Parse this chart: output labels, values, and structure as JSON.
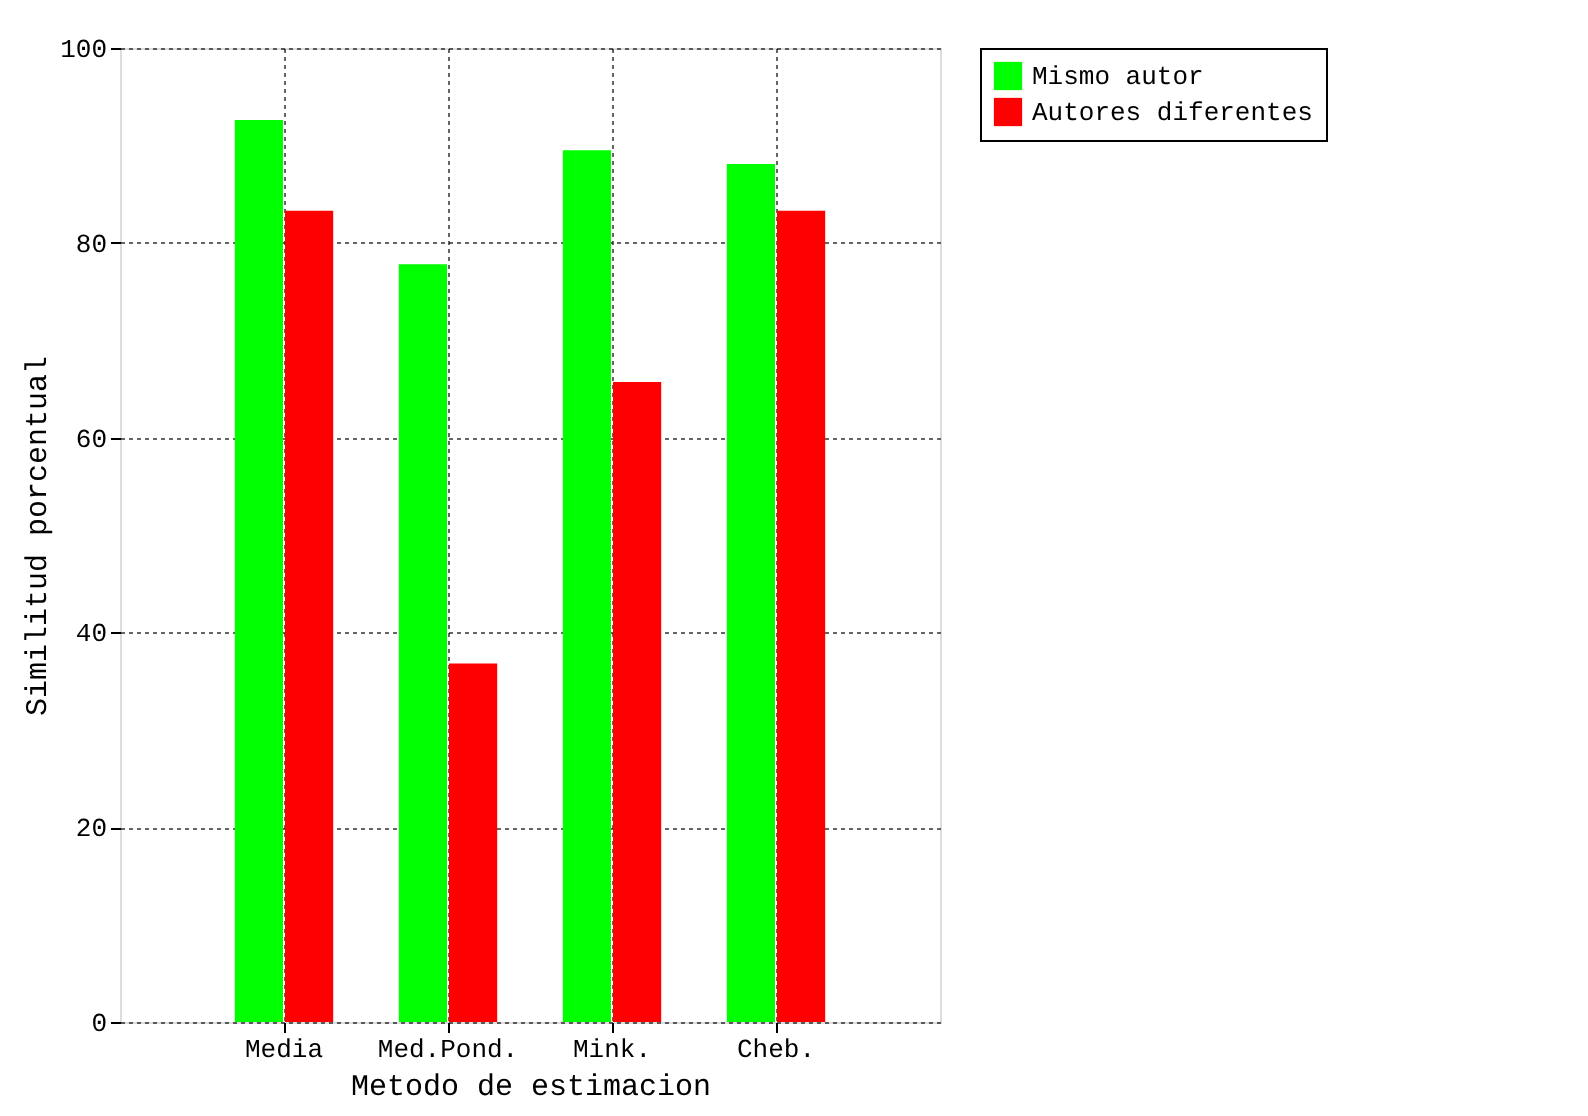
{
  "chart_data": {
    "type": "bar",
    "xlabel": "Metodo de estimacion",
    "ylabel": "Similitud porcentual",
    "categories": [
      "Media",
      "Med.Pond.",
      "Mink.",
      "Cheb."
    ],
    "series": [
      {
        "name": "Mismo autor",
        "color": "#00ff00",
        "values": [
          92.6,
          77.8,
          89.5,
          88.1
        ]
      },
      {
        "name": "Autores diferentes",
        "color": "#ff0000",
        "values": [
          83.3,
          36.8,
          65.7,
          83.3
        ]
      }
    ],
    "ylim": [
      0,
      100
    ],
    "yticks": [
      0,
      20,
      40,
      60,
      80,
      100
    ],
    "grid": true,
    "legend": "top right"
  }
}
